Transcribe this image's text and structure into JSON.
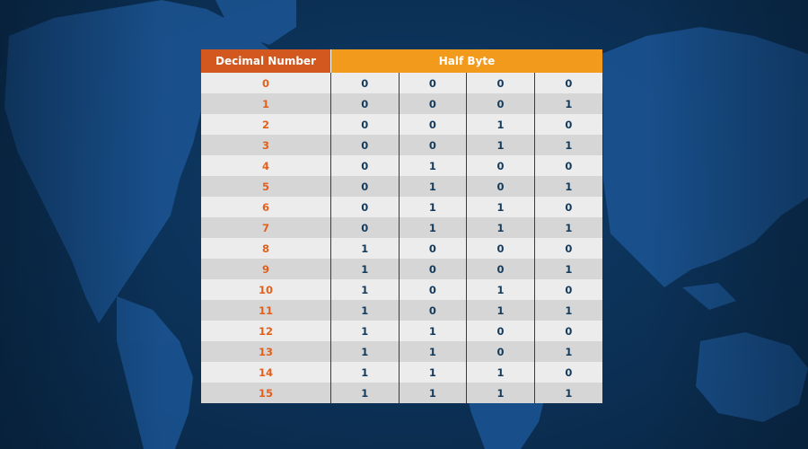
{
  "table": {
    "headers": {
      "decimal": "Decimal Number",
      "half_byte": "Half Byte"
    },
    "rows": [
      {
        "decimal": "0",
        "bits": [
          "0",
          "0",
          "0",
          "0"
        ]
      },
      {
        "decimal": "1",
        "bits": [
          "0",
          "0",
          "0",
          "1"
        ]
      },
      {
        "decimal": "2",
        "bits": [
          "0",
          "0",
          "1",
          "0"
        ]
      },
      {
        "decimal": "3",
        "bits": [
          "0",
          "0",
          "1",
          "1"
        ]
      },
      {
        "decimal": "4",
        "bits": [
          "0",
          "1",
          "0",
          "0"
        ]
      },
      {
        "decimal": "5",
        "bits": [
          "0",
          "1",
          "0",
          "1"
        ]
      },
      {
        "decimal": "6",
        "bits": [
          "0",
          "1",
          "1",
          "0"
        ]
      },
      {
        "decimal": "7",
        "bits": [
          "0",
          "1",
          "1",
          "1"
        ]
      },
      {
        "decimal": "8",
        "bits": [
          "1",
          "0",
          "0",
          "0"
        ]
      },
      {
        "decimal": "9",
        "bits": [
          "1",
          "0",
          "0",
          "1"
        ]
      },
      {
        "decimal": "10",
        "bits": [
          "1",
          "0",
          "1",
          "0"
        ]
      },
      {
        "decimal": "11",
        "bits": [
          "1",
          "0",
          "1",
          "1"
        ]
      },
      {
        "decimal": "12",
        "bits": [
          "1",
          "1",
          "0",
          "0"
        ]
      },
      {
        "decimal": "13",
        "bits": [
          "1",
          "1",
          "0",
          "1"
        ]
      },
      {
        "decimal": "14",
        "bits": [
          "1",
          "1",
          "1",
          "0"
        ]
      },
      {
        "decimal": "15",
        "bits": [
          "1",
          "1",
          "1",
          "1"
        ]
      }
    ]
  },
  "colors": {
    "decimal_header": "#d2581f",
    "half_byte_header": "#f29a1c",
    "decimal_text": "#e2601e",
    "bit_text": "#143a5c",
    "background": "#0c335a"
  }
}
